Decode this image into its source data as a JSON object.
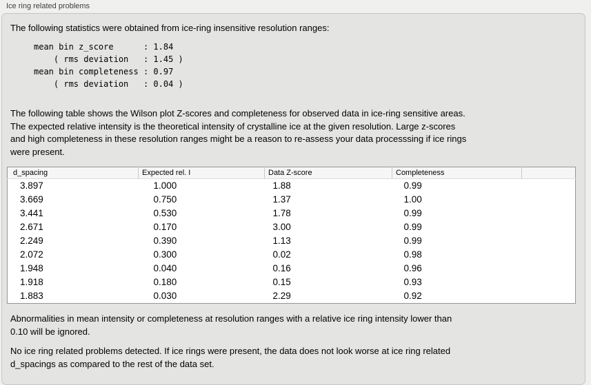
{
  "panel": {
    "title": "Ice ring related problems"
  },
  "colors": {
    "page_bg": "#f0f0ef",
    "panel_bg": "#e4e4e3",
    "panel_border": "#c5c5c5",
    "table_border": "#959595",
    "header_bg": "#f6f6f6",
    "header_sep": "#c9c9c9",
    "row_bg": "#ffffff"
  },
  "sections": {
    "intro": "The following statistics were obtained from ice-ring insensitive resolution ranges:",
    "stats_lines": [
      "mean bin z_score      : 1.84",
      "    ( rms deviation   : 1.45 )",
      "mean bin completeness : 0.97",
      "    ( rms deviation   : 0.04 )"
    ],
    "description_lines": [
      "The following table shows the Wilson plot Z-scores and completeness for observed data in ice-ring sensitive areas.",
      "The expected relative intensity is the theoretical intensity of crystalline ice at the given resolution. Large z-scores",
      "and high completeness in these resolution ranges might be a reason to re-assess your data processsing if ice rings",
      "were present."
    ],
    "note_lines": [
      "Abnormalities in mean intensity or completeness at resolution ranges with a relative ice ring intensity lower than",
      "0.10 will be ignored."
    ],
    "conclusion_lines": [
      "No ice ring related problems detected. If ice rings were present, the data does not look worse at ice ring related",
      "d_spacings as compared to the rest of the data set."
    ]
  },
  "table": {
    "headers": [
      "d_spacing",
      "Expected rel. I",
      "Data Z-score",
      "Completeness",
      ""
    ],
    "rows": [
      [
        "3.897",
        "1.000",
        "1.88",
        "0.99"
      ],
      [
        "3.669",
        "0.750",
        "1.37",
        "1.00"
      ],
      [
        "3.441",
        "0.530",
        "1.78",
        "0.99"
      ],
      [
        "2.671",
        "0.170",
        "3.00",
        "0.99"
      ],
      [
        "2.249",
        "0.390",
        "1.13",
        "0.99"
      ],
      [
        "2.072",
        "0.300",
        "0.02",
        "0.98"
      ],
      [
        "1.948",
        "0.040",
        "0.16",
        "0.96"
      ],
      [
        "1.918",
        "0.180",
        "0.15",
        "0.93"
      ],
      [
        "1.883",
        "0.030",
        "2.29",
        "0.92"
      ]
    ]
  }
}
